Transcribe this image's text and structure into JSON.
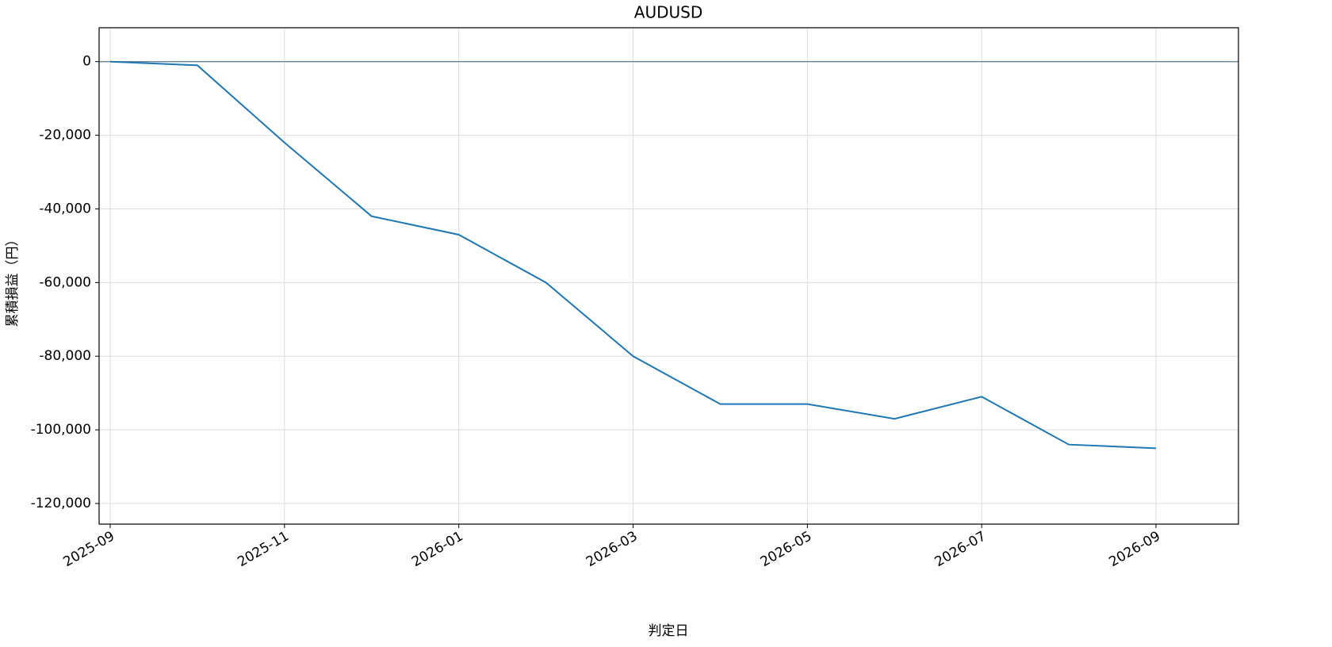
{
  "chart_data": {
    "type": "line",
    "title": "AUDUSD",
    "x_label": "判定日",
    "y_label": "累積損益（円）",
    "x": [
      "2025-09",
      "2025-10",
      "2025-11",
      "2025-12",
      "2026-01",
      "2026-02",
      "2026-03",
      "2026-04",
      "2026-05",
      "2026-06",
      "2026-07",
      "2026-08",
      "2026-09"
    ],
    "series": [
      {
        "name": "AUDUSD",
        "color": "#1f77b4",
        "values": [
          0,
          -1000,
          -22000,
          -42000,
          -47000,
          -60000,
          -80000,
          -93000,
          -93000,
          -97000,
          -91000,
          -104000,
          -105000
        ]
      }
    ],
    "xticks": [
      "2025-09",
      "2025-11",
      "2026-01",
      "2026-03",
      "2026-05",
      "2026-07",
      "2026-09"
    ],
    "ylim": [
      -125600,
      9200
    ],
    "yticks": [
      {
        "value": -120000,
        "label": "-120,000"
      },
      {
        "value": -100000,
        "label": "-100,000"
      },
      {
        "value": -80000,
        "label": "-80,000"
      },
      {
        "value": -60000,
        "label": "-60,000"
      },
      {
        "value": -40000,
        "label": "-40,000"
      },
      {
        "value": -20000,
        "label": "-20,000"
      },
      0
    ],
    "reference_line": 0,
    "grid": true
  }
}
